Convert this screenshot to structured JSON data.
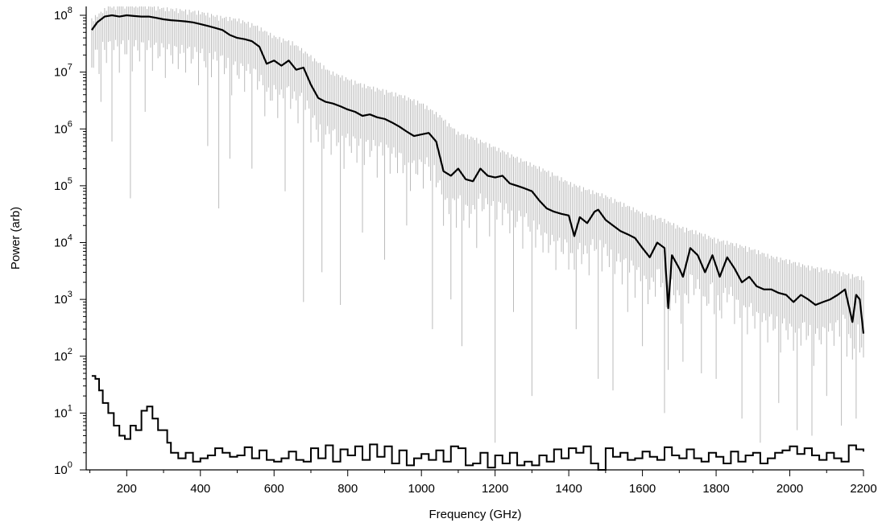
{
  "chart_data": {
    "type": "line",
    "xlabel": "Frequency (GHz)",
    "ylabel": "Power (arb)",
    "xlim": [
      90,
      2200
    ],
    "ylim": [
      1,
      100000000
    ],
    "yscale": "log",
    "grid": false,
    "legend": "none",
    "x_ticks": [
      200,
      400,
      600,
      800,
      1000,
      1200,
      1400,
      1600,
      1800,
      2000,
      2200
    ],
    "x_tick_labels": [
      "200",
      "400",
      "600",
      "800",
      "1000",
      "1200",
      "1400",
      "1600",
      "1800",
      "2000",
      "2200"
    ],
    "y_ticks": [
      1,
      10,
      100,
      1000,
      10000,
      100000,
      1000000,
      10000000,
      100000000
    ],
    "y_tick_labels": [
      {
        "base": "10",
        "exp": "0"
      },
      {
        "base": "10",
        "exp": "1"
      },
      {
        "base": "10",
        "exp": "2"
      },
      {
        "base": "10",
        "exp": "3"
      },
      {
        "base": "10",
        "exp": "4"
      },
      {
        "base": "10",
        "exp": "5"
      },
      {
        "base": "10",
        "exp": "6"
      },
      {
        "base": "10",
        "exp": "7"
      },
      {
        "base": "10",
        "exp": "8"
      }
    ],
    "series": [
      {
        "role": "smoothed spectrum",
        "color": "#000000",
        "x": [
          105,
          120,
          140,
          160,
          180,
          200,
          220,
          240,
          260,
          280,
          300,
          320,
          340,
          360,
          380,
          400,
          420,
          440,
          460,
          480,
          500,
          520,
          540,
          560,
          580,
          600,
          620,
          640,
          660,
          680,
          700,
          720,
          740,
          760,
          780,
          800,
          820,
          840,
          860,
          880,
          900,
          920,
          940,
          960,
          980,
          1000,
          1020,
          1040,
          1060,
          1080,
          1100,
          1120,
          1140,
          1160,
          1180,
          1200,
          1220,
          1240,
          1260,
          1280,
          1300,
          1320,
          1340,
          1360,
          1380,
          1400,
          1415,
          1430,
          1450,
          1470,
          1480,
          1500,
          1520,
          1540,
          1560,
          1580,
          1600,
          1620,
          1640,
          1660,
          1670,
          1680,
          1700,
          1710,
          1730,
          1750,
          1770,
          1790,
          1810,
          1830,
          1850,
          1870,
          1890,
          1910,
          1930,
          1950,
          1970,
          1990,
          2010,
          2030,
          2050,
          2070,
          2090,
          2110,
          2130,
          2150,
          2170,
          2180,
          2190,
          2200
        ],
        "y": [
          55000000,
          75000000,
          95000000,
          100000000,
          95000000,
          100000000,
          97000000,
          95000000,
          95000000,
          90000000,
          85000000,
          82000000,
          80000000,
          78000000,
          75000000,
          70000000,
          65000000,
          60000000,
          55000000,
          45000000,
          40000000,
          38000000,
          35000000,
          28000000,
          14000000,
          16000000,
          13000000,
          16000000,
          11000000,
          12000000,
          6000000,
          3500000,
          3000000,
          2800000,
          2500000,
          2200000,
          2000000,
          1700000,
          1800000,
          1600000,
          1500000,
          1300000,
          1100000,
          900000,
          750000,
          800000,
          850000,
          600000,
          180000,
          150000,
          200000,
          130000,
          120000,
          200000,
          150000,
          140000,
          150000,
          110000,
          100000,
          90000,
          80000,
          55000,
          40000,
          35000,
          32000,
          30000,
          13000,
          28000,
          22000,
          35000,
          38000,
          25000,
          20000,
          16000,
          14000,
          12000,
          8000,
          5500,
          10000,
          8000,
          700,
          6000,
          3500,
          2500,
          8000,
          6000,
          3000,
          6000,
          2500,
          5500,
          3500,
          2000,
          2500,
          1700,
          1500,
          1500,
          1300,
          1200,
          900,
          1200,
          1000,
          800,
          900,
          1000,
          1200,
          1500,
          400,
          1200,
          1000,
          250
        ]
      },
      {
        "role": "baseline",
        "color": "#000000",
        "x": [
          105,
          115,
          125,
          135,
          150,
          165,
          180,
          195,
          210,
          225,
          240,
          255,
          270,
          285,
          300,
          310,
          320,
          340,
          360,
          380,
          400,
          420,
          440,
          460,
          480,
          500,
          520,
          540,
          560,
          580,
          600,
          620,
          640,
          660,
          680,
          700,
          720,
          740,
          760,
          780,
          800,
          820,
          840,
          860,
          880,
          900,
          920,
          940,
          960,
          980,
          1000,
          1020,
          1040,
          1060,
          1080,
          1100,
          1120,
          1140,
          1160,
          1180,
          1200,
          1220,
          1240,
          1260,
          1280,
          1300,
          1320,
          1340,
          1360,
          1380,
          1400,
          1420,
          1440,
          1460,
          1480,
          1500,
          1520,
          1540,
          1560,
          1580,
          1600,
          1620,
          1640,
          1660,
          1680,
          1700,
          1720,
          1740,
          1760,
          1780,
          1800,
          1820,
          1840,
          1860,
          1880,
          1900,
          1920,
          1940,
          1960,
          1980,
          2000,
          2020,
          2040,
          2060,
          2080,
          2100,
          2120,
          2140,
          2160,
          2180,
          2200
        ],
        "y": [
          45,
          40,
          25,
          15,
          10,
          6,
          4,
          3.5,
          6,
          5,
          11,
          13,
          8,
          5,
          5,
          3,
          2,
          1.6,
          2,
          1.4,
          1.6,
          1.8,
          2.4,
          2,
          1.7,
          1.8,
          2.5,
          1.6,
          2.2,
          1.5,
          1.4,
          1.6,
          2.1,
          1.5,
          1.4,
          2.4,
          1.6,
          2.7,
          1.4,
          2.3,
          1.8,
          2.6,
          1.5,
          2.8,
          1.7,
          2.6,
          1.3,
          2.2,
          1.2,
          1.6,
          1.9,
          1.5,
          2.2,
          1.4,
          2.6,
          2.4,
          1.2,
          1.3,
          2.0,
          1.1,
          1.8,
          1.3,
          2.0,
          1.2,
          1.4,
          1.2,
          1.8,
          1.4,
          2.3,
          1.6,
          2.4,
          2.0,
          2.6,
          1.3,
          1.0,
          2.4,
          1.7,
          2.0,
          1.5,
          1.6,
          2.1,
          1.7,
          1.5,
          2.5,
          1.8,
          1.6,
          2.3,
          1.6,
          1.4,
          2.0,
          1.7,
          1.3,
          2.1,
          1.4,
          1.8,
          2.0,
          1.3,
          1.6,
          2.0,
          2.2,
          2.6,
          1.9,
          2.4,
          1.8,
          1.5,
          2.0,
          1.6,
          1.4,
          2.7,
          2.3,
          2.1
        ]
      },
      {
        "role": "raw spectrum envelope",
        "color": "#bbbbbb",
        "x": [
          105,
          150,
          200,
          250,
          300,
          350,
          400,
          450,
          500,
          550,
          600,
          650,
          700,
          750,
          800,
          850,
          900,
          950,
          1000,
          1050,
          1100,
          1150,
          1200,
          1250,
          1300,
          1350,
          1400,
          1450,
          1500,
          1550,
          1600,
          1650,
          1700,
          1750,
          1800,
          1850,
          1900,
          1950,
          2000,
          2050,
          2100,
          2150,
          2200
        ],
        "y": [
          90000000,
          150000000,
          160000000,
          160000000,
          140000000,
          130000000,
          120000000,
          100000000,
          90000000,
          70000000,
          45000000,
          35000000,
          20000000,
          11000000,
          8000000,
          6000000,
          5000000,
          4000000,
          3000000,
          1800000,
          900000,
          700000,
          500000,
          350000,
          250000,
          180000,
          120000,
          90000,
          70000,
          50000,
          35000,
          28000,
          20000,
          16000,
          12000,
          10000,
          8000,
          6000,
          5000,
          4000,
          3500,
          3000,
          2500
        ],
        "dips": [
          [
            130,
            3000000
          ],
          [
            160,
            600000
          ],
          [
            210,
            60000
          ],
          [
            250,
            2000000
          ],
          [
            285,
            200000
          ],
          [
            335,
            1500000
          ],
          [
            365,
            70000
          ],
          [
            420,
            500000
          ],
          [
            450,
            40000
          ],
          [
            480,
            300000
          ],
          [
            540,
            200000
          ],
          [
            585,
            2500
          ],
          [
            630,
            80000
          ],
          [
            680,
            900
          ],
          [
            730,
            3000
          ],
          [
            780,
            800
          ],
          [
            840,
            15000
          ],
          [
            900,
            5000
          ],
          [
            960,
            20000
          ],
          [
            1030,
            300
          ],
          [
            1080,
            1000
          ],
          [
            1110,
            150
          ],
          [
            1150,
            8000
          ],
          [
            1200,
            3
          ],
          [
            1250,
            600
          ],
          [
            1300,
            20
          ],
          [
            1365,
            1.5
          ],
          [
            1420,
            300
          ],
          [
            1480,
            40
          ],
          [
            1520,
            25
          ],
          [
            1560,
            600
          ],
          [
            1600,
            150
          ],
          [
            1660,
            10
          ],
          [
            1710,
            80
          ],
          [
            1760,
            50
          ],
          [
            1800,
            40
          ],
          [
            1870,
            8
          ],
          [
            1920,
            3
          ],
          [
            1970,
            15
          ],
          [
            2020,
            5
          ],
          [
            2060,
            4
          ],
          [
            2100,
            20
          ],
          [
            2140,
            6
          ],
          [
            2180,
            8
          ]
        ]
      }
    ]
  }
}
